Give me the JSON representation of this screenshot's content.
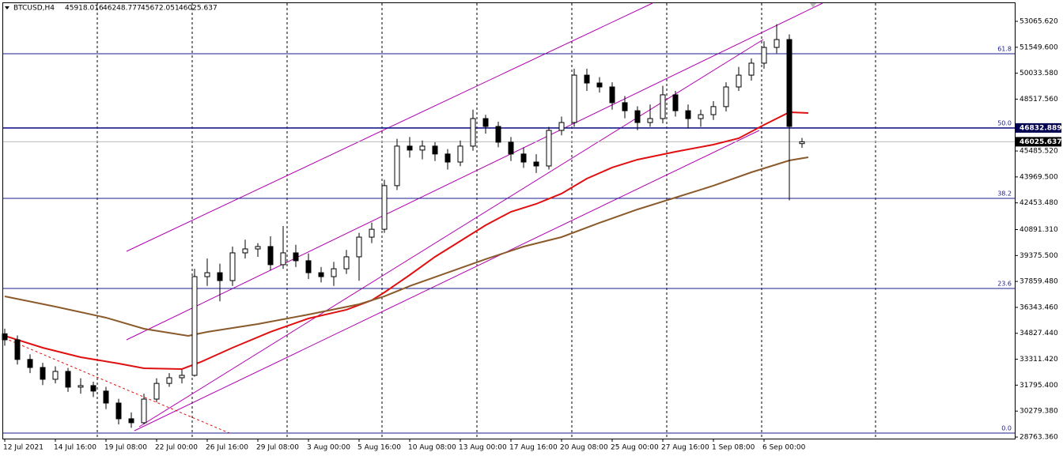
{
  "chart_data": {
    "type": "candlestick",
    "symbol": "BTCUSD,H4",
    "ylim": [
      28671,
      54174
    ],
    "yticks": [
      {
        "value": 53065.62,
        "label": "53065.620"
      },
      {
        "value": 51549.6,
        "label": "51549.600"
      },
      {
        "value": 50033.58,
        "label": "50033.580"
      },
      {
        "value": 48517.56,
        "label": "48517.560"
      },
      {
        "value": 45485.52,
        "label": "45485.520"
      },
      {
        "value": 43969.5,
        "label": "43969.500"
      },
      {
        "value": 42453.48,
        "label": "42453.480"
      },
      {
        "value": 40891.31,
        "label": "40891.310"
      },
      {
        "value": 39375.5,
        "label": "39375.500"
      },
      {
        "value": 37859.48,
        "label": "37859.480"
      },
      {
        "value": 36343.46,
        "label": "36343.460"
      },
      {
        "value": 34827.44,
        "label": "34827.440"
      },
      {
        "value": 33311.42,
        "label": "33311.420"
      },
      {
        "value": 31795.4,
        "label": "31795.400"
      },
      {
        "value": 30279.38,
        "label": "30279.380"
      },
      {
        "value": 28763.36,
        "label": "28763.360"
      }
    ],
    "x_labels": [
      "12 Jul 2021",
      "14 Jul 16:00",
      "19 Jul 08:00",
      "22 Jul 00:00",
      "26 Jul 16:00",
      "29 Jul 08:00",
      "3 Aug 00:00",
      "5 Aug 16:00",
      "10 Aug 08:00",
      "13 Aug 00:00",
      "17 Aug 16:00",
      "20 Aug 08:00",
      "25 Aug 00:00",
      "27 Aug 16:00",
      "1 Sep 08:00",
      "6 Sep 00:00"
    ],
    "candle_colors": {
      "up": "#ffffff",
      "down": "#000000",
      "edge": "#000000"
    },
    "ohlc": [
      [
        34800,
        35100,
        34100,
        34447
      ],
      [
        34447,
        34700,
        33000,
        33300
      ],
      [
        33300,
        33600,
        32500,
        32830
      ],
      [
        32830,
        33100,
        31800,
        32140
      ],
      [
        32140,
        32900,
        31900,
        32600
      ],
      [
        32600,
        32800,
        31400,
        31680
      ],
      [
        31680,
        32200,
        31300,
        31770
      ],
      [
        31770,
        32000,
        31100,
        31450
      ],
      [
        31450,
        31700,
        30400,
        30750
      ],
      [
        30750,
        31000,
        29500,
        29830
      ],
      [
        29830,
        30200,
        29300,
        29600
      ],
      [
        29600,
        31300,
        29500,
        30980
      ],
      [
        30980,
        32200,
        30800,
        31900
      ],
      [
        31900,
        32500,
        31700,
        32230
      ],
      [
        32230,
        32700,
        31900,
        32370
      ],
      [
        32370,
        38600,
        32300,
        38140
      ],
      [
        38140,
        39200,
        37600,
        38370
      ],
      [
        38370,
        38900,
        36700,
        37910
      ],
      [
        37910,
        39900,
        37600,
        39530
      ],
      [
        39530,
        40300,
        39200,
        39760
      ],
      [
        39760,
        40100,
        39300,
        39900
      ],
      [
        39900,
        40500,
        38500,
        38840
      ],
      [
        38840,
        41100,
        38600,
        39530
      ],
      [
        39530,
        40000,
        38700,
        39070
      ],
      [
        39070,
        39500,
        38000,
        38370
      ],
      [
        38370,
        38700,
        37800,
        38140
      ],
      [
        38140,
        39000,
        37600,
        38600
      ],
      [
        38600,
        39700,
        38300,
        39300
      ],
      [
        39300,
        40700,
        37900,
        40450
      ],
      [
        40450,
        41300,
        40100,
        40910
      ],
      [
        40910,
        43800,
        40700,
        43460
      ],
      [
        43460,
        46200,
        43200,
        45770
      ],
      [
        45770,
        46300,
        45100,
        45540
      ],
      [
        45540,
        46100,
        45000,
        45770
      ],
      [
        45770,
        46000,
        44900,
        45310
      ],
      [
        45310,
        45600,
        44400,
        44840
      ],
      [
        44840,
        46100,
        44600,
        45770
      ],
      [
        45770,
        47900,
        45500,
        47380
      ],
      [
        47380,
        47600,
        46500,
        46920
      ],
      [
        46920,
        47200,
        45700,
        46000
      ],
      [
        46000,
        46300,
        44900,
        45310
      ],
      [
        45310,
        45700,
        44500,
        44840
      ],
      [
        44840,
        45300,
        44200,
        44610
      ],
      [
        44610,
        46900,
        44400,
        46690
      ],
      [
        46690,
        47500,
        46400,
        47150
      ],
      [
        47150,
        50300,
        46900,
        49920
      ],
      [
        49920,
        50300,
        49000,
        49460
      ],
      [
        49460,
        49800,
        48900,
        49230
      ],
      [
        49230,
        49500,
        47900,
        48310
      ],
      [
        48310,
        48700,
        47400,
        47840
      ],
      [
        47840,
        48100,
        46700,
        47150
      ],
      [
        47150,
        48200,
        46900,
        47380
      ],
      [
        47380,
        49300,
        47100,
        48770
      ],
      [
        48770,
        49000,
        47500,
        47840
      ],
      [
        47840,
        48200,
        46800,
        47380
      ],
      [
        47380,
        47900,
        46900,
        47610
      ],
      [
        47610,
        48400,
        47300,
        48080
      ],
      [
        48080,
        49500,
        47800,
        49230
      ],
      [
        49230,
        50400,
        49000,
        49920
      ],
      [
        49920,
        50900,
        49600,
        50620
      ],
      [
        50620,
        51900,
        50300,
        51540
      ],
      [
        51540,
        52900,
        51200,
        52000
      ],
      [
        52000,
        52300,
        42600,
        46920
      ],
      [
        45918.016,
        46248.777,
        45672.051,
        46025.637
      ]
    ],
    "series": [
      {
        "color": "#e01010",
        "x": [
          0,
          3,
          6,
          9,
          11,
          14,
          15.5,
          18,
          21,
          24,
          27,
          29,
          30,
          32,
          34,
          36,
          38,
          40,
          42,
          44,
          46,
          48,
          50,
          53,
          56,
          58,
          60,
          62,
          63.5
        ],
        "values": [
          34678,
          33985,
          33431,
          33061,
          32784,
          32738,
          33153,
          33985,
          34909,
          35694,
          36203,
          36757,
          37219,
          38235,
          39298,
          40222,
          41146,
          41931,
          42393,
          42994,
          43872,
          44519,
          44981,
          45443,
          45858,
          46228,
          47013,
          47753,
          47707
        ]
      },
      {
        "color": "#8b5a2b",
        "x": [
          0,
          4,
          8,
          11,
          14.5,
          16,
          20,
          24,
          28,
          30,
          32,
          35,
          38,
          41,
          44,
          47,
          50,
          53,
          56,
          59,
          62,
          63.5
        ],
        "values": [
          36988,
          36387,
          35741,
          35094,
          34678,
          34909,
          35371,
          35925,
          36526,
          36988,
          37589,
          38374,
          39159,
          39898,
          40453,
          41285,
          42070,
          42763,
          43456,
          44241,
          44934,
          45119
        ]
      }
    ],
    "fib_levels": [
      {
        "label": "61.8",
        "price": 51171
      },
      {
        "label": "50.0",
        "price": 46832.889
      },
      {
        "label": "38.2",
        "price": 42717
      },
      {
        "label": "23.6",
        "price": 37450
      },
      {
        "label": "0.0",
        "price": 28995
      }
    ],
    "fib_color": "#1c1c8c"
  }
}
